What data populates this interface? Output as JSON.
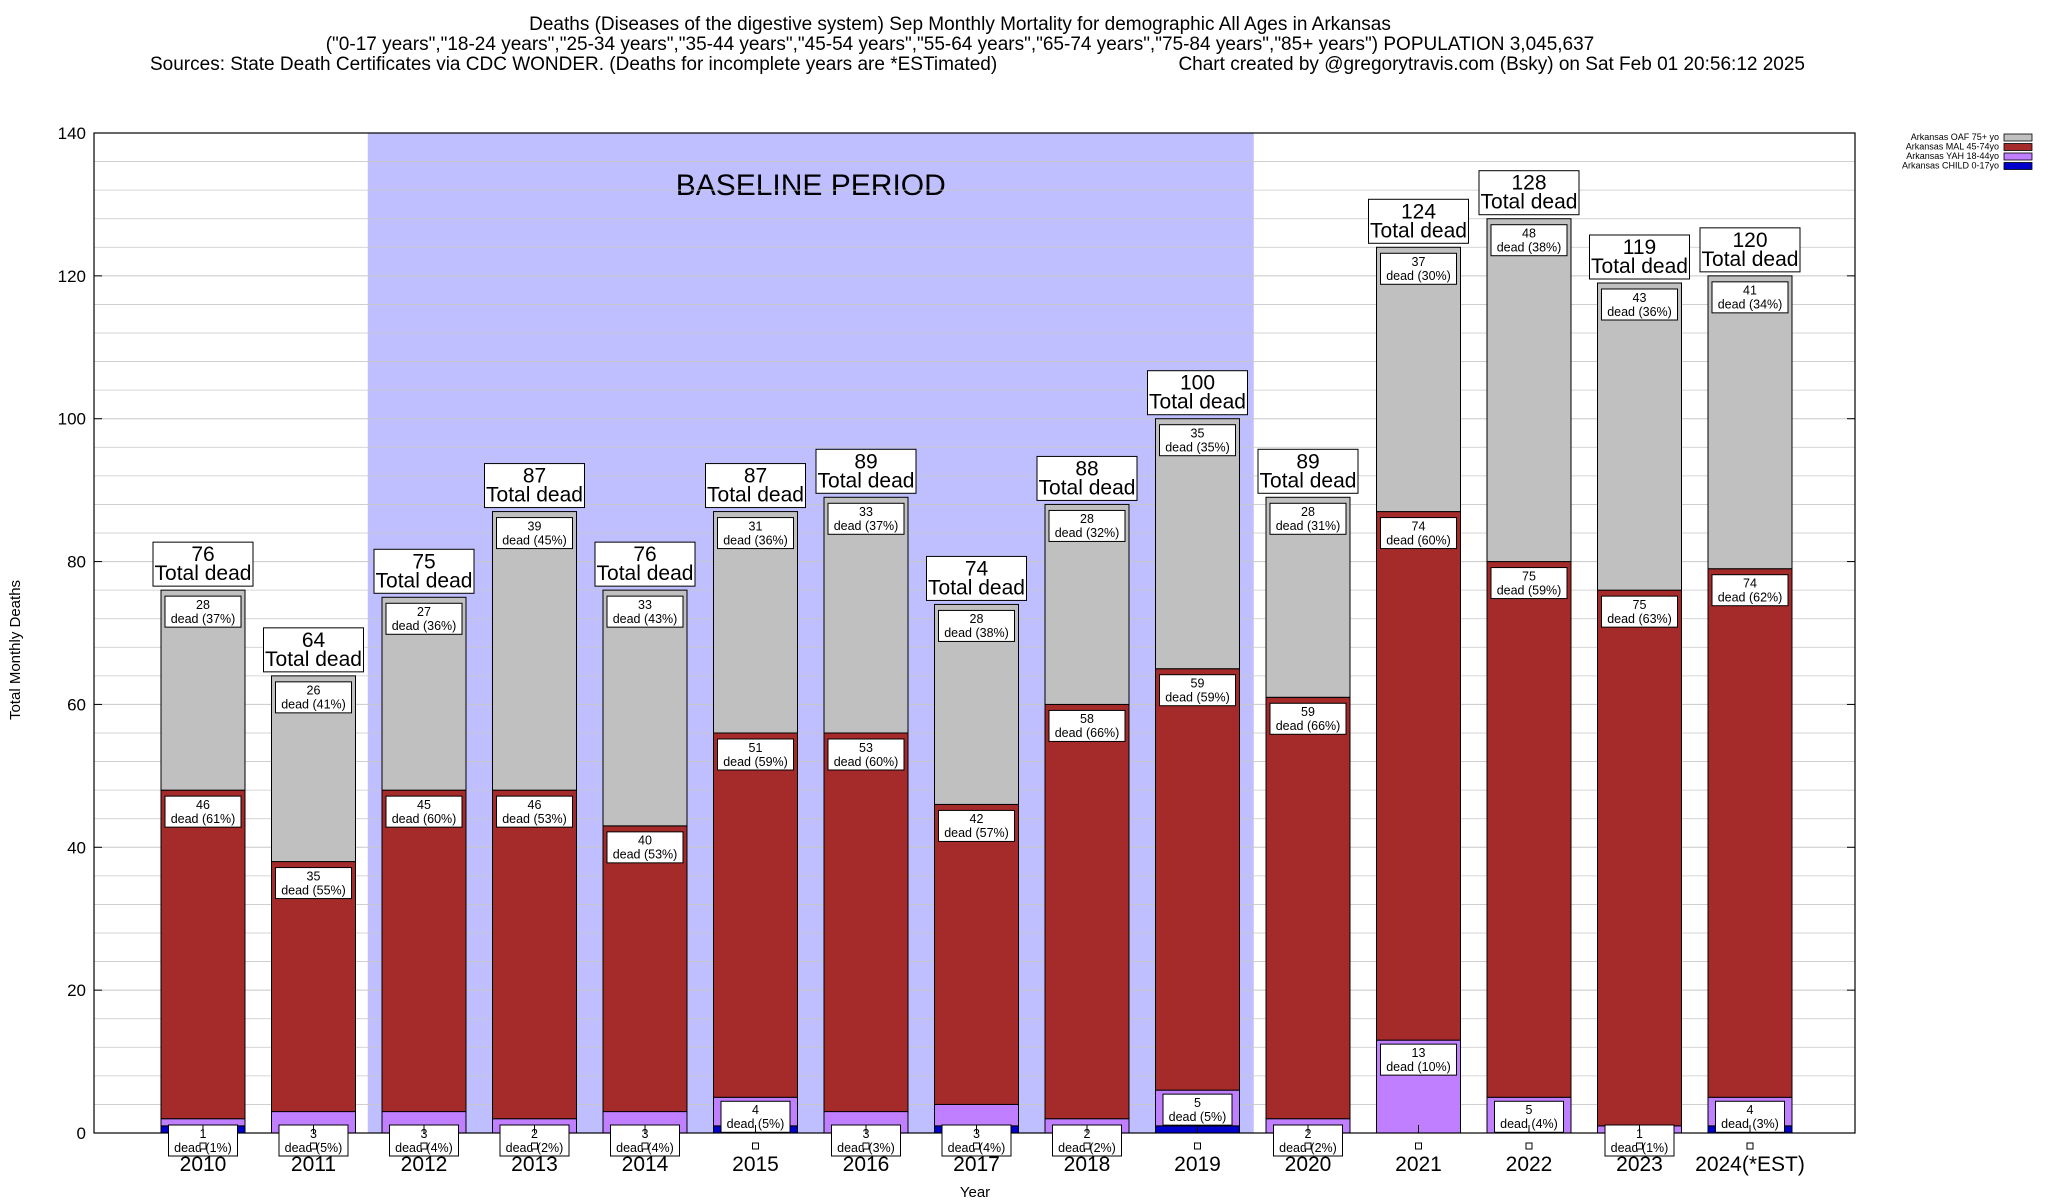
{
  "header": {
    "line1": "Deaths (Diseases of the digestive system) Sep Monthly Mortality for demographic All Ages in Arkansas",
    "line2": "(\"0-17 years\",\"18-24 years\",\"25-34 years\",\"35-44 years\",\"45-54 years\",\"55-64 years\",\"65-74 years\",\"75-84 years\",\"85+ years\") POPULATION 3,045,637",
    "line3_left": "Sources: State Death Certificates via CDC WONDER. (Deaths for incomplete years are *ESTimated)",
    "line3_right": "Chart created by @gregorytravis.com (Bsky) on Sat Feb 01 20:56:12 2025"
  },
  "chart_data": {
    "type": "bar",
    "stacked": true,
    "xlabel": "Year",
    "ylabel": "Total Monthly Deaths",
    "ylim": [
      0,
      140
    ],
    "yticks": [
      0,
      20,
      40,
      60,
      80,
      100,
      120,
      140
    ],
    "grid": true,
    "legend_position": "top-right",
    "annotation": "BASELINE PERIOD",
    "baseline_range": [
      "2012",
      "2019"
    ],
    "categories": [
      "2010",
      "2011",
      "2012",
      "2013",
      "2014",
      "2015",
      "2016",
      "2017",
      "2018",
      "2019",
      "2020",
      "2021",
      "2022",
      "2023",
      "2024(*EST)"
    ],
    "totals": [
      76,
      64,
      75,
      87,
      76,
      87,
      89,
      74,
      88,
      100,
      89,
      124,
      128,
      119,
      120
    ],
    "total_label_suffix": "Total dead",
    "series": [
      {
        "name": "Arkansas CHILD 0-17yo",
        "color": "#0000cc",
        "values": [
          1,
          0,
          0,
          0,
          0,
          1,
          0,
          1,
          0,
          1,
          0,
          0,
          0,
          0,
          1
        ]
      },
      {
        "name": "Arkansas YAH 18-44yo",
        "color": "#bf7fff",
        "values": [
          1,
          3,
          3,
          2,
          3,
          4,
          3,
          3,
          2,
          5,
          2,
          13,
          5,
          1,
          4
        ]
      },
      {
        "name": "Arkansas MAL 45-74yo",
        "color": "#a52a2a",
        "values": [
          46,
          35,
          45,
          46,
          40,
          51,
          53,
          42,
          58,
          59,
          59,
          74,
          75,
          75,
          74
        ]
      },
      {
        "name": "Arkansas OAF 75+ yo",
        "color": "#c0c0c0",
        "values": [
          28,
          26,
          27,
          39,
          33,
          31,
          33,
          28,
          28,
          35,
          28,
          37,
          48,
          43,
          41
        ]
      }
    ],
    "segment_labels": {
      "yah": [
        "1\ndead (1%)",
        "3\ndead (5%)",
        "3\ndead (4%)",
        "2\ndead (2%)",
        "3\ndead (4%)",
        "4\ndead (5%)",
        "3\ndead (3%)",
        "3\ndead (4%)",
        "2\ndead (2%)",
        "5\ndead (5%)",
        "2\ndead (2%)",
        "13\ndead (10%)",
        "5\ndead (4%)",
        "1\ndead (1%)",
        "4\ndead (3%)"
      ],
      "mal": [
        "46\ndead (61%)",
        "35\ndead (55%)",
        "45\ndead (60%)",
        "46\ndead (53%)",
        "40\ndead (53%)",
        "51\ndead (59%)",
        "53\ndead (60%)",
        "42\ndead (57%)",
        "58\ndead (66%)",
        "59\ndead (59%)",
        "59\ndead (66%)",
        "74\ndead (60%)",
        "75\ndead (59%)",
        "75\ndead (63%)",
        "74\ndead (62%)"
      ],
      "oaf": [
        "28\ndead (37%)",
        "26\ndead (41%)",
        "27\ndead (36%)",
        "39\ndead (45%)",
        "33\ndead (43%)",
        "31\ndead (36%)",
        "33\ndead (37%)",
        "28\ndead (38%)",
        "28\ndead (32%)",
        "35\ndead (35%)",
        "28\ndead (31%)",
        "37\ndead (30%)",
        "48\ndead (38%)",
        "43\ndead (36%)",
        "41\ndead (34%)"
      ]
    }
  },
  "colors": {
    "baseline_fill": "#bfbfff",
    "grid": "#c8c8c8",
    "axis": "#000000"
  }
}
